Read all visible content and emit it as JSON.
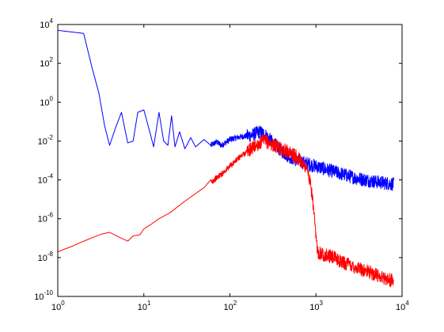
{
  "chart_data": {
    "type": "line",
    "title": "",
    "xlabel": "",
    "ylabel": "",
    "x_scale": "log",
    "y_scale": "log",
    "xlim": [
      1,
      10000
    ],
    "ylim": [
      1e-10,
      10000
    ],
    "grid": false,
    "legend": "none",
    "x_ticks": [
      {
        "value": 1,
        "base": "10",
        "exp": "0"
      },
      {
        "value": 10,
        "base": "10",
        "exp": "1"
      },
      {
        "value": 100,
        "base": "10",
        "exp": "2"
      },
      {
        "value": 1000,
        "base": "10",
        "exp": "3"
      },
      {
        "value": 10000,
        "base": "10",
        "exp": "4"
      }
    ],
    "y_ticks": [
      {
        "value": 1e-10,
        "base": "10",
        "exp": "-10"
      },
      {
        "value": 1e-08,
        "base": "10",
        "exp": "-8"
      },
      {
        "value": 1e-06,
        "base": "10",
        "exp": "-6"
      },
      {
        "value": 0.0001,
        "base": "10",
        "exp": "-4"
      },
      {
        "value": 0.01,
        "base": "10",
        "exp": "-2"
      },
      {
        "value": 1,
        "base": "10",
        "exp": "0"
      },
      {
        "value": 100,
        "base": "10",
        "exp": "2"
      },
      {
        "value": 10000,
        "base": "10",
        "exp": "4"
      }
    ],
    "series": [
      {
        "color": "#0000ff",
        "x": [
          1,
          2,
          2.5,
          3,
          3.5,
          4,
          4.7,
          5.5,
          6.5,
          7.5,
          8.5,
          10,
          11.5,
          13,
          15,
          17,
          19,
          21,
          23,
          26,
          30,
          35,
          40,
          50,
          60,
          70,
          80,
          100,
          120,
          150,
          180,
          200,
          220,
          240,
          260,
          300,
          400,
          500,
          700,
          1000,
          2000,
          3000,
          5000,
          8000
        ],
        "y": [
          5000,
          3500,
          60,
          3,
          0.06,
          0.006,
          0.05,
          0.3,
          0.008,
          0.01,
          0.3,
          0.4,
          0.04,
          0.005,
          0.3,
          0.01,
          0.006,
          0.2,
          0.005,
          0.03,
          0.004,
          0.015,
          0.005,
          0.012,
          0.006,
          0.009,
          0.006,
          0.012,
          0.015,
          0.018,
          0.02,
          0.025,
          0.03,
          0.025,
          0.02,
          0.01,
          0.003,
          0.0015,
          0.0008,
          0.0005,
          0.0002,
          0.00012,
          8e-05,
          6e-05
        ]
      },
      {
        "color": "#ff0000",
        "x": [
          1,
          1.5,
          2,
          2.7,
          3.2,
          4,
          5,
          6.5,
          7.5,
          9,
          10,
          12,
          15,
          20,
          30,
          50,
          80,
          100,
          130,
          160,
          200,
          240,
          260,
          300,
          400,
          500,
          600,
          700,
          800,
          900,
          1000,
          1050,
          1200,
          1600,
          2000,
          3000,
          5000,
          8000
        ],
        "y": [
          2e-08,
          4e-08,
          7e-08,
          1.2e-07,
          1.6e-07,
          2e-07,
          1.2e-07,
          7e-08,
          1.3e-07,
          1.5e-07,
          3e-07,
          5e-07,
          1e-06,
          2e-06,
          8e-06,
          4e-05,
          0.0002,
          0.0005,
          0.0015,
          0.003,
          0.006,
          0.009,
          0.01,
          0.007,
          0.004,
          0.0025,
          0.0015,
          0.0008,
          0.0003,
          2e-05,
          1e-07,
          2e-08,
          1.5e-08,
          1e-08,
          6e-09,
          3e-09,
          1.3e-09,
          6e-10
        ]
      }
    ]
  }
}
